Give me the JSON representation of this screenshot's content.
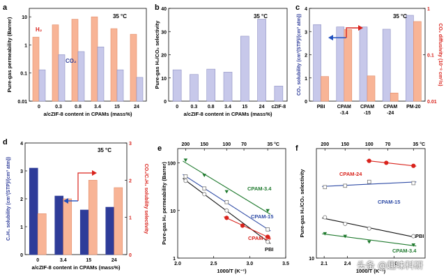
{
  "figure": {
    "watermark": "头条 @趣味科研"
  },
  "colors": {
    "lavender": "#c7c8ea",
    "lavender_stroke": "#8c8fc2",
    "salmon": "#f8b496",
    "salmon_stroke": "#e28a66",
    "navy": "#2e3c99",
    "red": "#d9231c",
    "green": "#1f7a2e",
    "blue_line": "#2f4ca6",
    "black": "#111111",
    "arrow_blue": "#1f4fbf"
  },
  "chart_data": [
    {
      "panel": "a",
      "type": "bar",
      "temp": "35 °C",
      "ylabel": "Pure-gas permeability (Barrer)",
      "xlabel": "a/cZIF-8 content in CPAMs (mass%)",
      "yscale": "log",
      "ylim": [
        0.01,
        20
      ],
      "yticks": [
        {
          "v": 0.01,
          "label": "0.01"
        },
        {
          "v": 0.1,
          "label": "0.1"
        },
        {
          "v": 1,
          "label": "1"
        },
        {
          "v": 10,
          "label": "10"
        }
      ],
      "categories": [
        "0",
        "0.3",
        "0.8",
        "3.4",
        "15",
        "24"
      ],
      "series": [
        {
          "name": "H₂",
          "values": [
            1.9,
            5.2,
            8.2,
            10.0,
            3.8,
            2.4
          ]
        },
        {
          "name": "CO₂",
          "values": [
            0.13,
            0.45,
            0.58,
            0.85,
            0.13,
            0.07
          ]
        }
      ]
    },
    {
      "panel": "b",
      "type": "bar",
      "temp": "35 °C",
      "ylabel": "Pure-gas H₂/CO₂ selectivity",
      "xlabel": "a/cZIF-8 content in CPAMs (mass%)",
      "ylim": [
        0,
        40
      ],
      "yticks": [
        {
          "v": 0,
          "label": "0"
        },
        {
          "v": 10,
          "label": "10"
        },
        {
          "v": 20,
          "label": "20"
        },
        {
          "v": 30,
          "label": "30"
        },
        {
          "v": 40,
          "label": "40"
        }
      ],
      "categories": [
        "0",
        "0.3",
        "0.8",
        "3.4",
        "15",
        "24",
        "cZIF-8"
      ],
      "series": [
        {
          "name": "H₂/CO₂",
          "values": [
            13.5,
            11.5,
            13.8,
            12.5,
            28,
            35.3,
            6.5
          ]
        }
      ]
    },
    {
      "panel": "c",
      "type": "bar",
      "temp": "35 °C",
      "ylabel": "CO₂ solubility (cm³(STP)/(cm³ atm))",
      "ylabel_right": "CO₂ diffusivity (10⁻⁸ cm²/s)",
      "ylim": [
        0,
        4
      ],
      "yticks": [
        {
          "v": 0,
          "label": "0"
        },
        {
          "v": 1,
          "label": "1"
        },
        {
          "v": 2,
          "label": "2"
        },
        {
          "v": 3,
          "label": "3"
        },
        {
          "v": 4,
          "label": "4"
        }
      ],
      "ylim_right": [
        0.01,
        1
      ],
      "yticks_right": [
        {
          "v": 0.01,
          "label": "0.01"
        },
        {
          "v": 0.1,
          "label": "0.1"
        },
        {
          "v": 1,
          "label": "1"
        }
      ],
      "categories": [
        "PBI",
        "CPAM\n-3.4",
        "CPAM\n-15",
        "CPAM\n-24",
        "PM-20"
      ],
      "series": [
        {
          "name": "CO₂ solubility",
          "values": [
            3.3,
            3.2,
            3.2,
            3.1,
            3.7
          ]
        },
        {
          "name": "CO₂ diffusivity",
          "values": [
            0.034,
            0.35,
            0.035,
            0.015,
            0.52
          ]
        }
      ]
    },
    {
      "panel": "d",
      "type": "bar",
      "temp": "35 °C",
      "ylabel": "C₂H₄ solubility (cm³(STP)/(cm³ atm))",
      "ylabel_right": "CO₂/C₂H₄ solubility selectivity",
      "xlabel": "a/cZIF-8 content in CPAMs (mass%)",
      "ylim": [
        0,
        4
      ],
      "yticks": [
        {
          "v": 0,
          "label": "0"
        },
        {
          "v": 1,
          "label": "1"
        },
        {
          "v": 2,
          "label": "2"
        },
        {
          "v": 3,
          "label": "3"
        },
        {
          "v": 4,
          "label": "4"
        }
      ],
      "ylim_right": [
        0,
        3
      ],
      "yticks_right": [
        {
          "v": 0,
          "label": "0"
        },
        {
          "v": 1,
          "label": "1"
        },
        {
          "v": 2,
          "label": "2"
        },
        {
          "v": 3,
          "label": "3"
        }
      ],
      "categories": [
        "0",
        "3.4",
        "15",
        "24"
      ],
      "series": [
        {
          "name": "C₂H₄ solubility",
          "values": [
            3.1,
            2.1,
            1.6,
            1.7
          ]
        },
        {
          "name": "CO₂/C₂H₄ solubility selectivity",
          "values": [
            1.1,
            1.5,
            2.0,
            1.8
          ]
        }
      ]
    },
    {
      "panel": "e",
      "type": "scatter",
      "temp": "35 °C",
      "ylabel": "Pure-gas H₂ permeability (Barrer)",
      "xlabel": "1000/T (K⁻¹)",
      "top_labels": [
        "200",
        "150",
        "100",
        "70",
        "35 °C"
      ],
      "xlim": [
        2.0,
        3.5
      ],
      "xticks": [
        {
          "v": 2.0,
          "label": "2.0"
        },
        {
          "v": 2.5,
          "label": "2.5"
        },
        {
          "v": 3.0,
          "label": "3.0"
        },
        {
          "v": 3.5,
          "label": "3.5"
        }
      ],
      "yscale": "log",
      "ylim": [
        1,
        200
      ],
      "yticks": [
        {
          "v": 1,
          "label": "1"
        },
        {
          "v": 10,
          "label": "10"
        },
        {
          "v": 100,
          "label": "100"
        }
      ],
      "series": [
        {
          "name": "CPAM-3.4",
          "x": [
            2.11,
            2.37,
            2.68,
            3.25
          ],
          "y": [
            115,
            55,
            25,
            10
          ]
        },
        {
          "name": "CPAM-15",
          "x": [
            2.11,
            2.37,
            2.68,
            3.25
          ],
          "y": [
            52,
            29,
            15,
            4
          ]
        },
        {
          "name": "PBI",
          "x": [
            2.11,
            2.37,
            2.68,
            3.25
          ],
          "y": [
            42,
            22,
            10,
            2.2
          ]
        },
        {
          "name": "CPAM-24",
          "x": [
            2.68,
            2.9,
            3.25
          ],
          "y": [
            7,
            4.8,
            2.8
          ]
        }
      ]
    },
    {
      "panel": "f",
      "type": "scatter",
      "temp": "35 °C",
      "ylabel": "Pure-gas H₂/CO₂ selectivity",
      "xlabel": "1000/T (K⁻¹)",
      "top_labels": [
        "200",
        "150",
        "100",
        "70",
        "35 °C"
      ],
      "xlim": [
        2.0,
        3.4
      ],
      "xticks": [
        {
          "v": 2.1,
          "label": "2.1"
        },
        {
          "v": 2.4,
          "label": "2.4"
        },
        {
          "v": 3.0,
          "label": "3.0"
        }
      ],
      "yscale": "log",
      "ylim": [
        10,
        45
      ],
      "yticks": [
        {
          "v": 10,
          "label": "10"
        }
      ],
      "series": [
        {
          "name": "CPAM-24",
          "x": [
            2.68,
            2.9,
            3.25
          ],
          "y": [
            38,
            37,
            35.5
          ]
        },
        {
          "name": "CPAM-15",
          "x": [
            2.11,
            2.37,
            2.68,
            3.25
          ],
          "y": [
            26.5,
            27,
            28.5,
            28
          ]
        },
        {
          "name": "PBI",
          "x": [
            2.11,
            2.37,
            2.68,
            3.25
          ],
          "y": [
            17.5,
            16,
            15,
            13.5
          ]
        },
        {
          "name": "CPAM-3.4",
          "x": [
            2.11,
            2.37,
            2.68,
            3.25
          ],
          "y": [
            14,
            13.5,
            12.5,
            12
          ]
        }
      ]
    }
  ]
}
